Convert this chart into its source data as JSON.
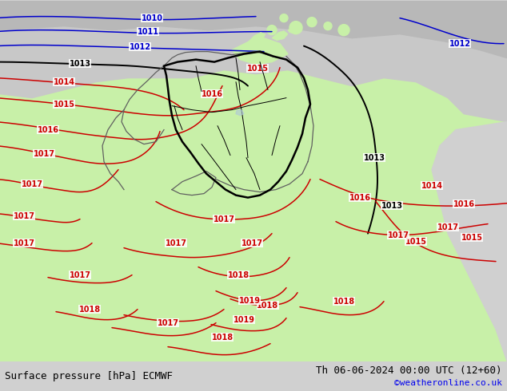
{
  "title_left": "Surface pressure [hPa] ECMWF",
  "title_right": "Th 06-06-2024 00:00 UTC (12+60)",
  "credit": "©weatheronline.co.uk",
  "figsize": [
    6.34,
    4.9
  ],
  "dpi": 100,
  "footer_fontsize": 9,
  "credit_color": "#0000ee",
  "isobar_blue": "#0000cc",
  "isobar_red": "#cc0000",
  "isobar_black": "#000000",
  "label_fontsize": 7,
  "color_land_green": "#c8f0a8",
  "color_sea_gray": "#c8c8c8",
  "color_outside_gray": "#b8b8b8",
  "color_footer_bg": "#d0d0d0"
}
